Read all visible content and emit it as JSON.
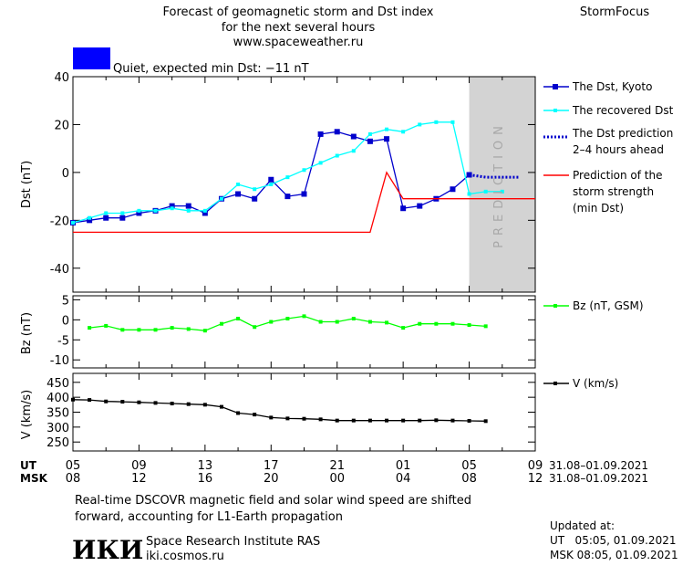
{
  "header": {
    "title_lines": [
      "Forecast of geomagnetic storm and Dst index",
      "for the next several hours",
      "www.spaceweather.ru"
    ],
    "brand": "StormFocus",
    "status_text": "Quiet, expected min Dst: −11 nT",
    "status_color": "#0000ff"
  },
  "prediction_label": "PREDICTION",
  "legend": {
    "dst_kyoto": "The Dst, Kyoto",
    "dst_recovered": "The recovered Dst",
    "dst_prediction": [
      "The Dst prediction",
      "2–4 hours ahead"
    ],
    "storm_strength": [
      "Prediction of the",
      "storm strength",
      "(min Dst)"
    ],
    "bz": "Bz (nT, GSM)",
    "v": "V (km/s)"
  },
  "time_axis": {
    "ut_label": "UT",
    "msk_label": "MSK",
    "ut_ticks": [
      "05",
      "09",
      "13",
      "17",
      "21",
      "01",
      "05",
      "09"
    ],
    "msk_ticks": [
      "08",
      "12",
      "16",
      "20",
      "00",
      "04",
      "08",
      "12"
    ],
    "date_range_ut": "31.08–01.09.2021",
    "date_range_msk": "31.08–01.09.2021"
  },
  "footer": {
    "note_lines": [
      "Real-time DSCOVR magnetic field and solar wind speed are shifted",
      "forward, accounting for L1-Earth propagation"
    ],
    "logo": "ИКИ",
    "institute": "Space Research Institute RAS",
    "site": "iki.cosmos.ru",
    "updated_label": "Updated at:",
    "updated_ut": "UT   05:05, 01.09.2021",
    "updated_msk": "MSK 08:05, 01.09.2021"
  },
  "colors": {
    "dst_kyoto": "#0000cc",
    "dst_recovered": "#00ffff",
    "dst_prediction": "#0000cc",
    "storm_strength": "#ff0000",
    "bz": "#00ff00",
    "v": "#000000",
    "prediction_band": "#d3d3d3"
  },
  "chart_data": [
    {
      "type": "line",
      "ylabel": "Dst (nT)",
      "xlim": [
        5,
        33
      ],
      "ylim": [
        -50,
        40
      ],
      "yticks": [
        40,
        20,
        0,
        -20,
        -40
      ],
      "prediction_start": 29,
      "series": [
        {
          "name": "The Dst, Kyoto",
          "x": [
            5,
            6,
            7,
            8,
            9,
            10,
            11,
            12,
            13,
            14,
            15,
            16,
            17,
            18,
            19,
            20,
            21,
            22,
            23,
            24,
            25,
            26,
            27,
            28,
            29
          ],
          "y": [
            -21,
            -20,
            -19,
            -19,
            -17,
            -16,
            -14,
            -14,
            -17,
            -11,
            -9,
            -11,
            -3,
            -10,
            -9,
            16,
            17,
            15,
            13,
            14,
            -15,
            -14,
            -11,
            -7,
            -1
          ]
        },
        {
          "name": "The recovered Dst",
          "x": [
            5,
            6,
            7,
            8,
            9,
            10,
            11,
            12,
            13,
            14,
            15,
            16,
            17,
            18,
            19,
            20,
            21,
            22,
            23,
            24,
            25,
            26,
            27,
            28,
            29,
            30,
            31
          ],
          "y": [
            -21,
            -19,
            -17,
            -17,
            -16,
            -16,
            -15,
            -16,
            -16,
            -11,
            -5,
            -7,
            -5,
            -2,
            1,
            4,
            7,
            9,
            16,
            18,
            17,
            20,
            21,
            21,
            -9,
            -8,
            -8
          ]
        },
        {
          "name": "The Dst prediction",
          "x": [
            29,
            30,
            31,
            32
          ],
          "y": [
            -1,
            -2,
            -2,
            -2
          ]
        },
        {
          "name": "Prediction of the storm strength (min Dst)",
          "x": [
            5,
            23,
            24,
            25,
            33
          ],
          "y": [
            -25,
            -25,
            0,
            -11,
            -11
          ]
        }
      ]
    },
    {
      "type": "line",
      "ylabel": "Bz (nT)",
      "xlim": [
        5,
        33
      ],
      "ylim": [
        -12,
        6
      ],
      "yticks": [
        5,
        0,
        -5,
        -10
      ],
      "series": [
        {
          "name": "Bz (nT, GSM)",
          "x": [
            6,
            7,
            8,
            9,
            10,
            11,
            12,
            13,
            14,
            15,
            16,
            17,
            18,
            19,
            20,
            21,
            22,
            23,
            24,
            25,
            26,
            27,
            28,
            29,
            30
          ],
          "y": [
            -2,
            -1.5,
            -2.5,
            -2.5,
            -2.5,
            -2,
            -2.3,
            -2.7,
            -1,
            0.3,
            -1.8,
            -0.5,
            0.3,
            0.9,
            -0.5,
            -0.5,
            0.3,
            -0.5,
            -0.7,
            -2,
            -1,
            -1,
            -1,
            -1.3,
            -1.6
          ]
        }
      ]
    },
    {
      "type": "line",
      "ylabel": "V (km/s)",
      "xlim": [
        5,
        33
      ],
      "ylim": [
        220,
        480
      ],
      "yticks": [
        450,
        400,
        350,
        300,
        250
      ],
      "series": [
        {
          "name": "V (km/s)",
          "x": [
            5,
            6,
            7,
            8,
            9,
            10,
            11,
            12,
            13,
            14,
            15,
            16,
            17,
            18,
            19,
            20,
            21,
            22,
            23,
            24,
            25,
            26,
            27,
            28,
            29,
            30
          ],
          "y": [
            392,
            391,
            386,
            385,
            383,
            381,
            379,
            377,
            375,
            368,
            347,
            342,
            332,
            329,
            328,
            326,
            322,
            322,
            322,
            322,
            322,
            322,
            323,
            322,
            321,
            320
          ]
        }
      ]
    }
  ]
}
